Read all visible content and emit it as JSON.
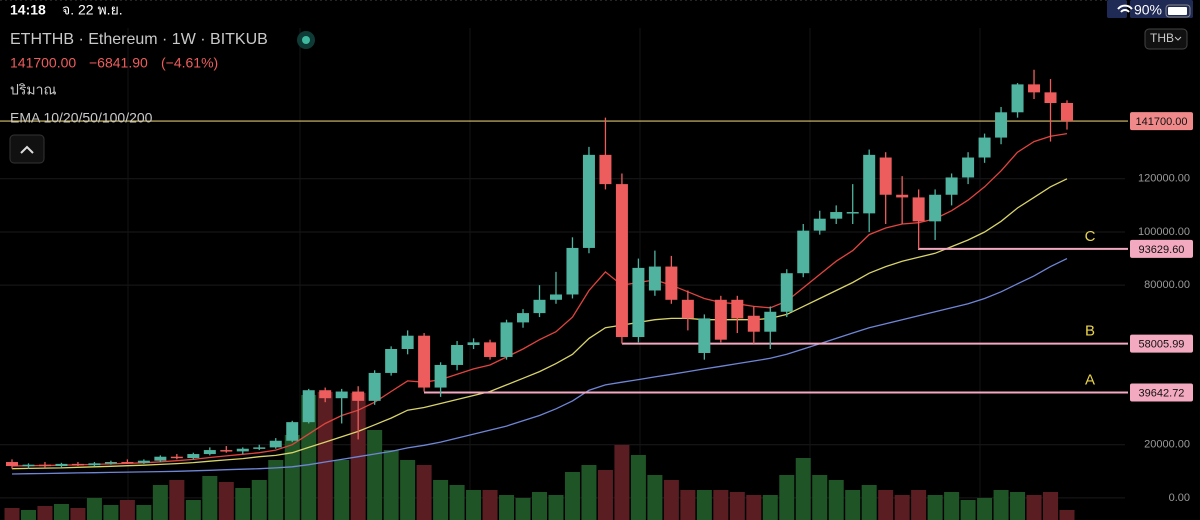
{
  "status_bar": {
    "time": "14:18",
    "date": "จ. 22 พ.ย.",
    "battery": "90%"
  },
  "chart_data": {
    "type": "candlestick",
    "symbol": "ETHTHB · Ethereum · 1W · BITKUB",
    "change": "−6841.90",
    "change_pct": "(−4.61%)",
    "volume_label": "ปริมาณ",
    "ema_label": "EMA 10/20/50/100/200",
    "currency": "THB",
    "last": {
      "value": 141700,
      "label": "141700.00"
    },
    "high": [
      14500,
      13000,
      13500,
      13200,
      13500,
      13500,
      14000,
      14500,
      14500,
      16000,
      16500,
      17000,
      19000,
      19500,
      19000,
      20000,
      22500,
      29000,
      41000,
      41500,
      41000,
      42000,
      48000,
      57000,
      63000,
      62000,
      51000,
      59000,
      60000,
      59500,
      67000,
      71000,
      80000,
      85000,
      98000,
      132000,
      143000,
      122000,
      90000,
      93000,
      91000,
      78000,
      69000,
      76000,
      76000,
      72000,
      72000,
      86000,
      103000,
      108000,
      110000,
      118000,
      131000,
      130000,
      121000,
      116000,
      116000,
      122000,
      130000,
      137000,
      147000,
      156000,
      161000,
      157500,
      149500
    ],
    "low": [
      11000,
      11000,
      11500,
      11500,
      12000,
      12000,
      12500,
      12800,
      12800,
      13500,
      14500,
      14500,
      16000,
      17000,
      16500,
      18000,
      18500,
      21000,
      28000,
      36000,
      28000,
      22000,
      35000,
      46000,
      54000,
      40000,
      38000,
      48000,
      56000,
      52000,
      52000,
      64000,
      68000,
      73000,
      75000,
      92000,
      116000,
      58000,
      58500,
      76000,
      73000,
      63000,
      52000,
      58500,
      62000,
      58000,
      56000,
      68000,
      83000,
      99000,
      103000,
      103000,
      100000,
      103000,
      103000,
      93600,
      97000,
      110000,
      118000,
      126000,
      133000,
      143000,
      150000,
      134000,
      138500
    ],
    "levels": [
      {
        "name": "C",
        "value": 93629.6,
        "label": "93629.60"
      },
      {
        "name": "B",
        "value": 58005.99,
        "label": "58005.99"
      },
      {
        "name": "A",
        "value": 39642.72,
        "label": "39642.72"
      }
    ],
    "ylim": [
      -8300,
      176700
    ],
    "yticks": [
      {
        "value": 0,
        "label": "0.00"
      },
      {
        "value": 20000,
        "label": "20000.00"
      },
      {
        "value": 80000,
        "label": "80000.00"
      },
      {
        "value": 100000,
        "label": "100000.00"
      },
      {
        "value": 120000,
        "label": "120000.00"
      }
    ],
    "y2lim": [
      0,
      492
    ],
    "grid": true,
    "up_color": "#4fb3a0",
    "down_color": "#ee5d5d",
    "volume_up_color": "#1f5526",
    "volume_down_color": "#5a1e22",
    "open": [
      13500,
      12000,
      12500,
      12000,
      12800,
      12300,
      13000,
      13500,
      13200,
      14000,
      15500,
      15000,
      16500,
      18000,
      17500,
      18500,
      19000,
      21500,
      28500,
      40500,
      37500,
      40000,
      36500,
      47000,
      56000,
      61000,
      41500,
      50000,
      57500,
      58500,
      53000,
      66000,
      69500,
      74500,
      76500,
      94000,
      129000,
      118000,
      60500,
      78000,
      87000,
      74500,
      54500,
      74500,
      74500,
      68500,
      62500,
      70000,
      84500,
      100500,
      105000,
      107000,
      107000,
      128000,
      114000,
      113000,
      104000,
      114000,
      120500,
      128000,
      135500,
      145000,
      155500,
      152500,
      148500
    ],
    "close": [
      12000,
      12500,
      12000,
      12800,
      12300,
      13000,
      13500,
      13200,
      14000,
      15500,
      15000,
      16500,
      18000,
      17500,
      18500,
      19000,
      21500,
      28500,
      40500,
      37500,
      40000,
      36500,
      47000,
      56000,
      61000,
      41500,
      50000,
      57500,
      58500,
      53000,
      66000,
      69500,
      74500,
      76500,
      94000,
      129000,
      118000,
      60500,
      86500,
      87000,
      74500,
      67500,
      67500,
      59500,
      67500,
      62500,
      70000,
      84500,
      100500,
      105000,
      107500,
      107500,
      129000,
      114000,
      113000,
      104000,
      114000,
      120500,
      128000,
      135500,
      145000,
      155500,
      152500,
      148500,
      141700
    ],
    "volume": [
      12,
      10,
      14,
      16,
      12,
      22,
      15,
      20,
      15,
      35,
      40,
      20,
      44,
      38,
      32,
      40,
      60,
      85,
      125,
      128,
      60,
      127,
      90,
      70,
      60,
      55,
      40,
      35,
      30,
      30,
      25,
      22,
      28,
      25,
      48,
      55,
      50,
      75,
      65,
      45,
      40,
      30,
      30,
      30,
      28,
      25,
      25,
      45,
      62,
      45,
      40,
      30,
      35,
      30,
      25,
      30,
      25,
      28,
      20,
      22,
      30,
      28,
      25,
      28,
      10
    ],
    "ema": [
      {
        "color": "#e0443e",
        "values": [
          12000,
          12100,
          12200,
          12300,
          12400,
          12600,
          12800,
          13000,
          13200,
          13600,
          14000,
          14500,
          15200,
          15800,
          16400,
          17000,
          18000,
          20000,
          24000,
          28000,
          31000,
          33000,
          36000,
          40000,
          44000,
          43500,
          44500,
          46500,
          48500,
          50000,
          53000,
          56000,
          59500,
          62500,
          68000,
          78000,
          85000,
          80000,
          81000,
          82000,
          80000,
          77500,
          75000,
          73500,
          73000,
          72000,
          71500,
          74000,
          79000,
          84000,
          89000,
          93000,
          99000,
          101500,
          103000,
          103500,
          105000,
          108000,
          112000,
          117000,
          123000,
          130000,
          134000,
          136000,
          137000
        ]
      },
      {
        "color": "#d8d36a",
        "values": [
          11000,
          11100,
          11200,
          11300,
          11500,
          11700,
          11900,
          12100,
          12300,
          12600,
          12900,
          13300,
          13800,
          14300,
          14800,
          15500,
          16000,
          17000,
          19000,
          21000,
          23000,
          25000,
          27500,
          30000,
          33000,
          34000,
          35500,
          37000,
          38500,
          40000,
          42500,
          45000,
          47500,
          50500,
          54000,
          60000,
          64000,
          65000,
          66000,
          67000,
          67500,
          67500,
          67000,
          67000,
          67000,
          67000,
          67500,
          69000,
          72000,
          75000,
          78000,
          81000,
          84500,
          87000,
          89000,
          90500,
          92000,
          94500,
          97000,
          100000,
          104000,
          109000,
          113000,
          117000,
          120000
        ]
      },
      {
        "color": "#6f86d6",
        "values": [
          9000,
          9100,
          9200,
          9300,
          9400,
          9500,
          9600,
          9700,
          9800,
          9900,
          10000,
          10200,
          10400,
          10600,
          10800,
          11000,
          11300,
          11700,
          12500,
          13500,
          14500,
          15500,
          16500,
          17500,
          18800,
          19800,
          21000,
          22500,
          24000,
          25500,
          27000,
          29000,
          31000,
          33500,
          36500,
          40500,
          42500,
          43500,
          44500,
          45500,
          46500,
          47500,
          48500,
          49500,
          50500,
          51500,
          52500,
          54000,
          56000,
          58000,
          60000,
          62000,
          64000,
          65500,
          67000,
          68500,
          70000,
          71500,
          73000,
          75000,
          77500,
          80500,
          83500,
          87000,
          90000
        ]
      }
    ]
  }
}
